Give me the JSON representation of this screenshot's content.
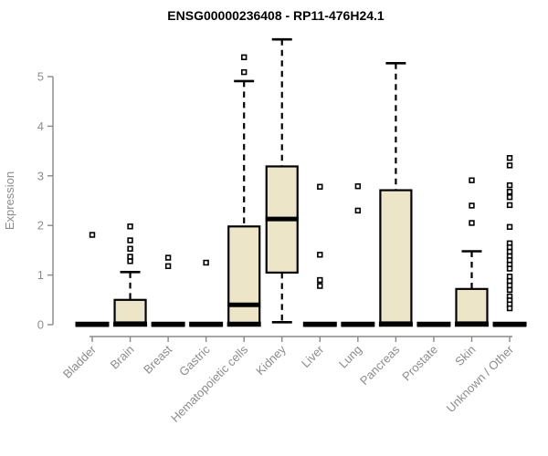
{
  "chart_data": {
    "type": "boxplot",
    "title": "ENSG00000236408 - RP11-476H24.1",
    "ylabel": "Expression",
    "xlabel": "",
    "yticks": [
      0,
      1,
      2,
      3,
      4,
      5
    ],
    "ylim": [
      0,
      5.85
    ],
    "grid": false,
    "legend": "none",
    "colors": {
      "box_fill": "#ECE5C7",
      "box_stroke": "#000000",
      "axis": "#888888",
      "tick_text": "#8c8c8c",
      "title_text": "#000000"
    },
    "categories": [
      "Bladder",
      "Brain",
      "Breast",
      "Gastric",
      "Hematopoietic cells",
      "Kidney",
      "Liver",
      "Lung",
      "Pancreas",
      "Prostate",
      "Skin",
      "Unknown / Other"
    ],
    "boxes": [
      {
        "label": "Bladder",
        "q1": 0,
        "median": 0,
        "q3": 0,
        "whisker_low": 0,
        "whisker_high": 0,
        "outliers": [
          1.81
        ],
        "zero_bar": true
      },
      {
        "label": "Brain",
        "q1": 0,
        "median": 0.02,
        "q3": 0.5,
        "whisker_low": 0,
        "whisker_high": 1.06,
        "outliers": [
          1.28,
          1.37,
          1.53,
          1.7,
          1.98
        ],
        "zero_bar": true
      },
      {
        "label": "Breast",
        "q1": 0,
        "median": 0,
        "q3": 0,
        "whisker_low": 0,
        "whisker_high": 0,
        "outliers": [
          1.18,
          1.35
        ],
        "zero_bar": true
      },
      {
        "label": "Gastric",
        "q1": 0,
        "median": 0,
        "q3": 0,
        "whisker_low": 0,
        "whisker_high": 0,
        "outliers": [
          1.25
        ],
        "zero_bar": true
      },
      {
        "label": "Hematopoietic cells",
        "q1": 0,
        "median": 0.4,
        "q3": 1.98,
        "whisker_low": 0,
        "whisker_high": 4.91,
        "outliers": [
          5.09,
          5.39
        ],
        "zero_bar": true
      },
      {
        "label": "Kidney",
        "q1": 1.05,
        "median": 2.13,
        "q3": 3.19,
        "whisker_low": 0.05,
        "whisker_high": 5.75,
        "outliers": [],
        "zero_bar": false
      },
      {
        "label": "Liver",
        "q1": 0,
        "median": 0,
        "q3": 0,
        "whisker_low": 0,
        "whisker_high": 0,
        "outliers": [
          0.78,
          0.9,
          1.41,
          2.78
        ],
        "zero_bar": true
      },
      {
        "label": "Lung",
        "q1": 0,
        "median": 0,
        "q3": 0,
        "whisker_low": 0,
        "whisker_high": 0,
        "outliers": [
          2.3,
          2.79
        ],
        "zero_bar": true
      },
      {
        "label": "Pancreas",
        "q1": 0,
        "median": 0.02,
        "q3": 2.71,
        "whisker_low": 0,
        "whisker_high": 5.27,
        "outliers": [],
        "zero_bar": true
      },
      {
        "label": "Prostate",
        "q1": 0,
        "median": 0,
        "q3": 0,
        "whisker_low": 0,
        "whisker_high": 0,
        "outliers": [],
        "zero_bar": true
      },
      {
        "label": "Skin",
        "q1": 0,
        "median": 0.02,
        "q3": 0.72,
        "whisker_low": 0,
        "whisker_high": 1.48,
        "outliers": [
          2.05,
          2.4,
          2.91
        ],
        "zero_bar": true
      },
      {
        "label": "Unknown / Other",
        "q1": 0,
        "median": 0,
        "q3": 0,
        "whisker_low": 0,
        "whisker_high": 0,
        "outliers": [
          3.36,
          3.21,
          2.81,
          2.68,
          2.57,
          2.41,
          1.97,
          1.64,
          1.56,
          1.47,
          1.38,
          1.3,
          1.21,
          1.13,
          0.97,
          0.88,
          0.79,
          0.7,
          0.57,
          0.49,
          0.41,
          0.33
        ],
        "zero_bar": true
      }
    ]
  }
}
